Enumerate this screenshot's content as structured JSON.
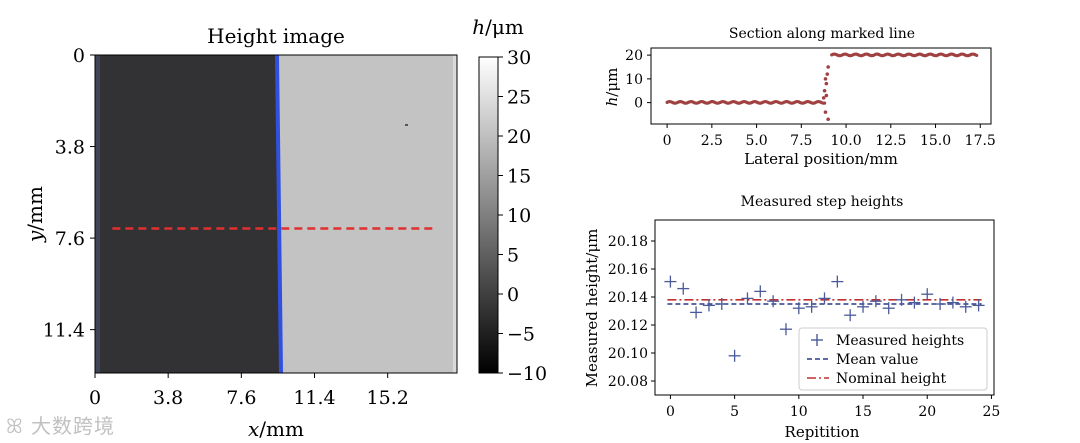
{
  "chart_data": [
    {
      "type": "heatmap",
      "title": "Height image",
      "xlabel_var": "x",
      "xlabel_unit": "/mm",
      "ylabel_var": "y",
      "ylabel_unit": "/mm",
      "xticks": [
        "0",
        "3.8",
        "7.6",
        "11.4",
        "15.2"
      ],
      "xtick_values": [
        0,
        3.8,
        7.6,
        11.4,
        15.2
      ],
      "yticks": [
        "0",
        "3.8",
        "7.6",
        "11.4"
      ],
      "ytick_values": [
        0,
        3.8,
        7.6,
        11.4
      ],
      "xlim": [
        0,
        18.8
      ],
      "ylim": [
        0,
        13.2
      ],
      "step_x_mm": 9.0,
      "left_height_um": 0,
      "right_height_um": 20,
      "marked_line": {
        "y_mm": 7.2,
        "x_start_mm": 0.9,
        "x_end_mm": 17.6,
        "color": "#e03030"
      },
      "colorbar": {
        "label_var": "h",
        "label_unit": "/μm",
        "range": [
          -10,
          30
        ],
        "ticks": [
          "30",
          "25",
          "20",
          "15",
          "10",
          "5",
          "0",
          "−5",
          "−10"
        ],
        "tick_values": [
          30,
          25,
          20,
          15,
          10,
          5,
          0,
          -5,
          -10
        ]
      }
    },
    {
      "type": "scatter",
      "title": "Section along marked line",
      "xlabel": "Lateral position/mm",
      "ylabel_var": "h",
      "ylabel_unit": "/μm",
      "xlim": [
        -0.9,
        18.1
      ],
      "ylim": [
        -9,
        23
      ],
      "xticks": [
        "0",
        "2.5",
        "5.0",
        "7.5",
        "10.0",
        "12.5",
        "15.0",
        "17.5"
      ],
      "xtick_values": [
        0,
        2.5,
        5.0,
        7.5,
        10.0,
        12.5,
        15.0,
        17.5
      ],
      "yticks": [
        "20",
        "10",
        "0"
      ],
      "ytick_values": [
        20,
        10,
        0
      ],
      "segments": [
        {
          "x_start": 0,
          "x_end": 8.8,
          "y": 0.1
        },
        {
          "x_start": 9.2,
          "x_end": 17.3,
          "y": 20.1
        }
      ],
      "transition_x": [
        8.75,
        8.8,
        8.85,
        8.9,
        8.95,
        9.0,
        8.85,
        8.9,
        9.0
      ],
      "transition_y": [
        2,
        5,
        -4,
        8,
        12,
        -7,
        10,
        3,
        15
      ],
      "marker_color": "#a04040"
    },
    {
      "type": "scatter",
      "title": "Measured step heights",
      "xlabel": "Repitition",
      "ylabel": "Measured height/μm",
      "xlim": [
        -1.2,
        25.2
      ],
      "ylim": [
        20.07,
        20.195
      ],
      "xticks": [
        "0",
        "5",
        "10",
        "15",
        "20",
        "25"
      ],
      "xtick_values": [
        0,
        5,
        10,
        15,
        20,
        25
      ],
      "yticks": [
        "20.18",
        "20.16",
        "20.14",
        "20.12",
        "20.10",
        "20.08"
      ],
      "ytick_values": [
        20.18,
        20.16,
        20.14,
        20.12,
        20.1,
        20.08
      ],
      "series": [
        {
          "name": "Measured heights",
          "x": [
            0,
            1,
            2,
            3,
            4,
            5,
            6,
            7,
            8,
            9,
            10,
            11,
            12,
            13,
            14,
            15,
            16,
            17,
            18,
            19,
            20,
            21,
            22,
            23,
            24
          ],
          "values": [
            20.151,
            20.146,
            20.129,
            20.134,
            20.135,
            20.098,
            20.139,
            20.144,
            20.137,
            20.117,
            20.132,
            20.133,
            20.139,
            20.151,
            20.127,
            20.133,
            20.137,
            20.132,
            20.138,
            20.136,
            20.142,
            20.135,
            20.136,
            20.133,
            20.134
          ]
        }
      ],
      "mean_value": 20.135,
      "nominal_height": 20.138,
      "legend": [
        "Measured heights",
        "Mean value",
        "Nominal height"
      ],
      "colors": {
        "points": "#4a5a9a",
        "mean": "#2a3a8a",
        "nominal": "#c03030"
      }
    }
  ],
  "watermark": "大数跨境"
}
